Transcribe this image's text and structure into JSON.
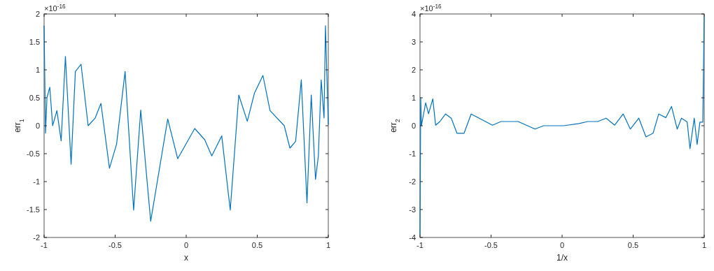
{
  "chart_data": [
    {
      "type": "line",
      "xlabel": "x",
      "ylabel": "err$_{1}$",
      "annotations": [
        "×10$^{-16}$"
      ],
      "x": [
        -1,
        -0.99,
        -0.98,
        -0.96,
        -0.94,
        -0.91,
        -0.88,
        -0.85,
        -0.81,
        -0.78,
        -0.74,
        -0.69,
        -0.64,
        -0.6,
        -0.54,
        -0.49,
        -0.43,
        -0.37,
        -0.32,
        -0.25,
        -0.13,
        -0.06,
        0.06,
        0.13,
        0.18,
        0.25,
        0.31,
        0.37,
        0.43,
        0.48,
        0.54,
        0.59,
        0.69,
        0.73,
        0.77,
        0.81,
        0.85,
        0.88,
        0.91,
        0.93,
        0.95,
        0.97,
        0.98,
        1
      ],
      "series": [
        {
          "color": "#0072bd",
          "values": [
            1.79,
            -0.13,
            0.5,
            0.69,
            0,
            0.27,
            -0.27,
            1.24,
            -0.69,
            0.97,
            1.1,
            0,
            0.14,
            0.4,
            -0.76,
            -0.33,
            0.97,
            -1.51,
            0.28,
            -1.71,
            0.12,
            -0.59,
            -0.05,
            -0.25,
            -0.54,
            -0.18,
            -1.51,
            0.55,
            0.08,
            0.58,
            0.9,
            0.27,
            0,
            -0.4,
            -0.28,
            0.82,
            -1.38,
            0.55,
            -0.96,
            -0.54,
            0.82,
            0.14,
            1.79,
            0.02
          ]
        }
      ],
      "xlim": [
        -1,
        1
      ],
      "xticks": [
        -1,
        -0.5,
        0,
        0.5,
        1
      ],
      "ylim": [
        -2,
        2
      ],
      "yticks": [
        -2,
        -1.5,
        -1,
        -0.5,
        0,
        0.5,
        1,
        1.5,
        2
      ]
    },
    {
      "type": "line",
      "xlabel": "1/x",
      "ylabel": "err$_{2}$",
      "annotations": [
        "×10$^{-16}$"
      ],
      "x": [
        -1,
        -0.995,
        -0.99,
        -0.96,
        -0.94,
        -0.91,
        -0.89,
        -0.86,
        -0.82,
        -0.78,
        -0.74,
        -0.69,
        -0.64,
        -0.49,
        -0.43,
        -0.31,
        -0.19,
        -0.13,
        0.01,
        0.12,
        0.18,
        0.25,
        0.31,
        0.37,
        0.43,
        0.48,
        0.54,
        0.59,
        0.64,
        0.68,
        0.73,
        0.77,
        0.81,
        0.84,
        0.88,
        0.9,
        0.93,
        0.95,
        0.97,
        0.99,
        1
      ],
      "series": [
        {
          "color": "#0072bd",
          "values": [
            -3.9,
            1,
            0,
            0.82,
            0.43,
            0.96,
            0.02,
            0.15,
            0.42,
            0.27,
            -0.27,
            -0.27,
            0.42,
            0.02,
            0.15,
            0.15,
            -0.12,
            0,
            0,
            0.08,
            0.15,
            0.15,
            0.27,
            0.02,
            0.42,
            -0.12,
            0.27,
            -0.4,
            -0.27,
            0.42,
            0.29,
            0.69,
            -0.12,
            0.27,
            0.14,
            -0.82,
            0.27,
            -0.67,
            0.13,
            0.13,
            3.9
          ]
        }
      ],
      "xlim": [
        -1,
        1
      ],
      "xticks": [
        -1,
        -0.5,
        0,
        0.5,
        1
      ],
      "ylim": [
        -4,
        4
      ],
      "yticks": [
        -4,
        -3,
        -2,
        -1,
        0,
        1,
        2,
        3,
        4
      ]
    }
  ]
}
